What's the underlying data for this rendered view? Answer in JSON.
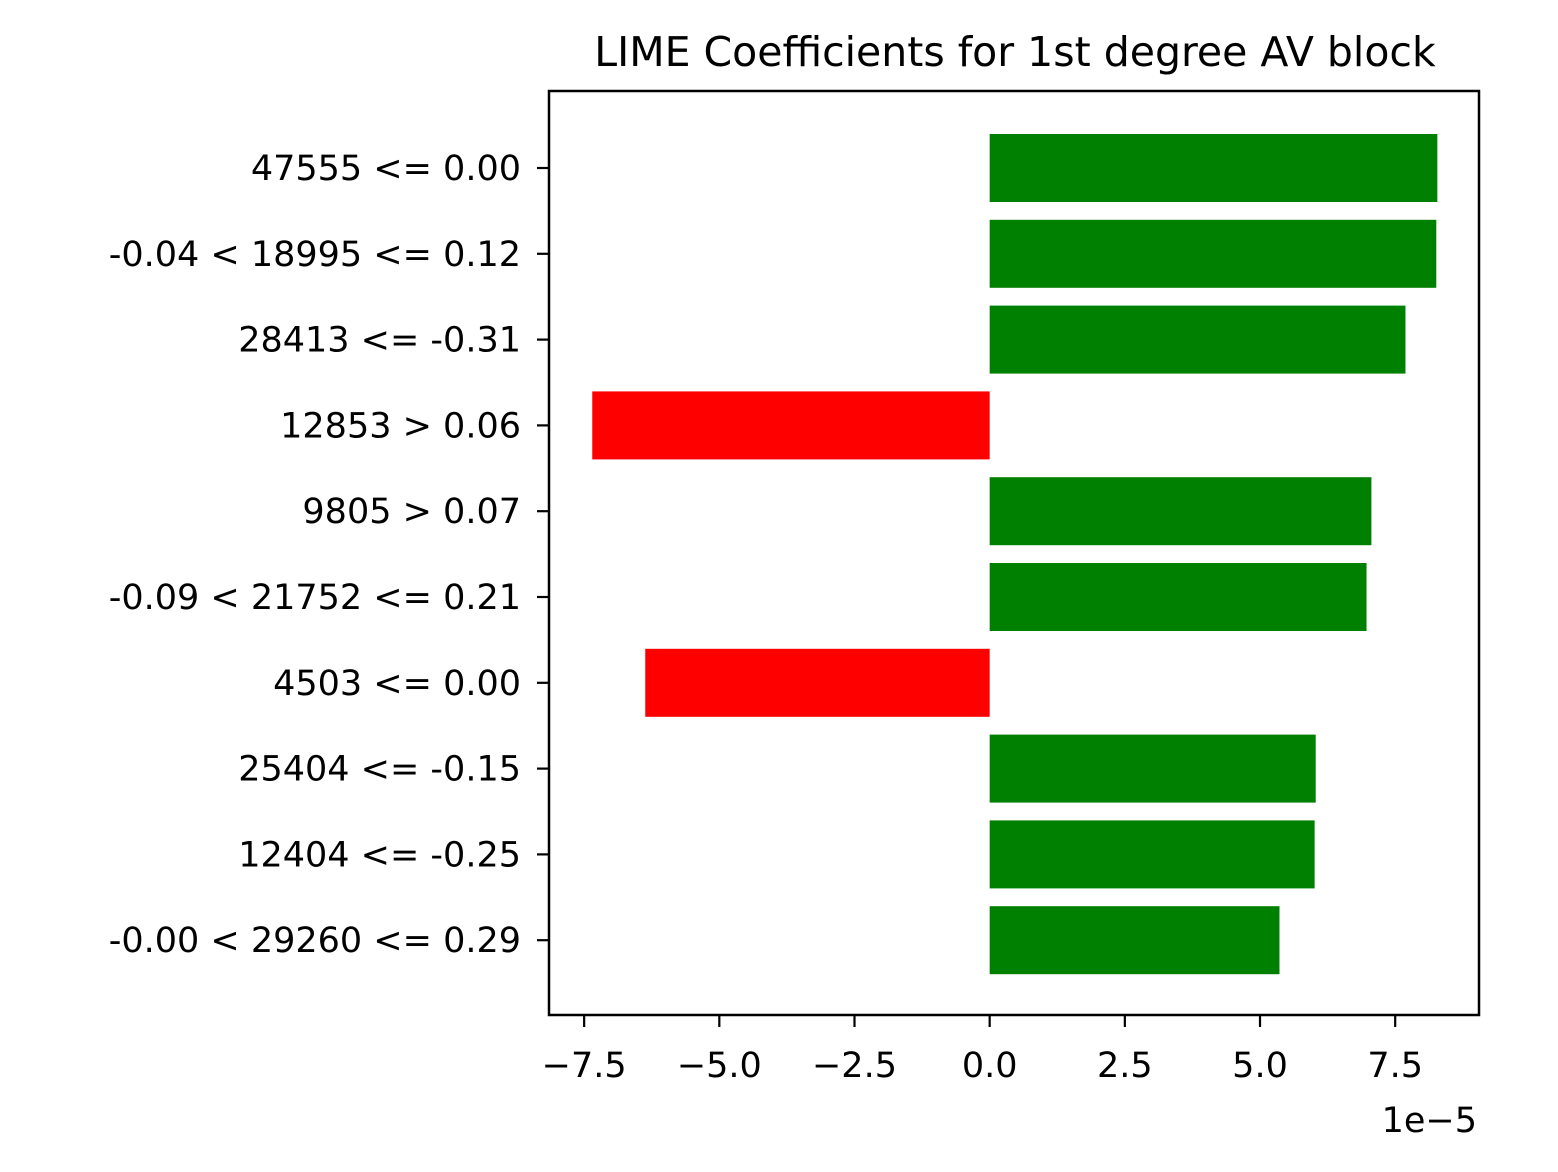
{
  "chart_data": {
    "type": "bar",
    "orientation": "horizontal",
    "title": "LIME Coefficients for 1st degree AV block",
    "xlabel": "",
    "ylabel": "",
    "x_scale_label": "1e−5",
    "xlim": [
      -8.15,
      9.05
    ],
    "xticks": [
      -7.5,
      -5.0,
      -2.5,
      0.0,
      2.5,
      5.0,
      7.5
    ],
    "xtick_labels": [
      "−7.5",
      "−5.0",
      "−2.5",
      "0.0",
      "2.5",
      "5.0",
      "7.5"
    ],
    "categories": [
      "47555 <= 0.00",
      "-0.04 < 18995 <= 0.12",
      "28413 <= -0.31",
      "12853 > 0.06",
      "9805 > 0.07",
      "-0.09 < 21752 <= 0.21",
      "4503 <= 0.00",
      "25404 <= -0.15",
      "12404 <= -0.25",
      "-0.00 < 29260 <= 0.29"
    ],
    "values": [
      8.28,
      8.26,
      7.69,
      -7.35,
      7.06,
      6.97,
      -6.37,
      6.03,
      6.01,
      5.36
    ],
    "colors": {
      "positive": "#008000",
      "negative": "#ff0000"
    },
    "grid": false,
    "legend": "none"
  }
}
